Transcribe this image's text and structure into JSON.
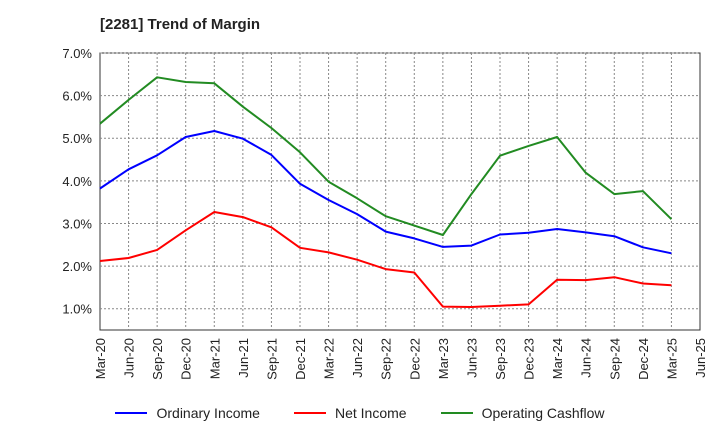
{
  "chart_data": {
    "type": "line",
    "title": "[2281]  Trend of Margin",
    "x": [
      "Mar-20",
      "Jun-20",
      "Sep-20",
      "Dec-20",
      "Mar-21",
      "Jun-21",
      "Sep-21",
      "Dec-21",
      "Mar-22",
      "Jun-22",
      "Sep-22",
      "Dec-22",
      "Mar-23",
      "Jun-23",
      "Sep-23",
      "Dec-23",
      "Mar-24",
      "Jun-24",
      "Sep-24",
      "Dec-24",
      "Mar-25",
      "Jun-25"
    ],
    "ylim": [
      0.5,
      7.0
    ],
    "yticks": [
      1.0,
      2.0,
      3.0,
      4.0,
      5.0,
      6.0,
      7.0
    ],
    "ytick_labels": [
      "1.0%",
      "2.0%",
      "3.0%",
      "4.0%",
      "5.0%",
      "6.0%",
      "7.0%"
    ],
    "grid": true,
    "legend_position": "bottom",
    "series": [
      {
        "name": "Ordinary Income",
        "color": "#0000ff",
        "values": [
          3.82,
          4.27,
          4.6,
          5.03,
          5.17,
          4.99,
          4.61,
          3.93,
          3.55,
          3.22,
          2.81,
          2.65,
          2.45,
          2.48,
          2.74,
          2.78,
          2.87,
          2.79,
          2.7,
          2.44,
          2.3,
          null
        ]
      },
      {
        "name": "Net Income",
        "color": "#ff0000",
        "values": [
          2.12,
          2.19,
          2.38,
          2.84,
          3.27,
          3.15,
          2.91,
          2.43,
          2.32,
          2.15,
          1.93,
          1.85,
          1.05,
          1.04,
          1.07,
          1.1,
          1.68,
          1.67,
          1.74,
          1.59,
          1.55,
          null
        ]
      },
      {
        "name": "Operating Cashflow",
        "color": "#228b22",
        "values": [
          5.34,
          5.9,
          6.43,
          6.32,
          6.29,
          5.74,
          5.24,
          4.67,
          3.98,
          3.59,
          3.17,
          2.95,
          2.73,
          3.69,
          4.59,
          4.82,
          5.03,
          4.19,
          3.69,
          3.76,
          3.1,
          null
        ]
      }
    ]
  }
}
